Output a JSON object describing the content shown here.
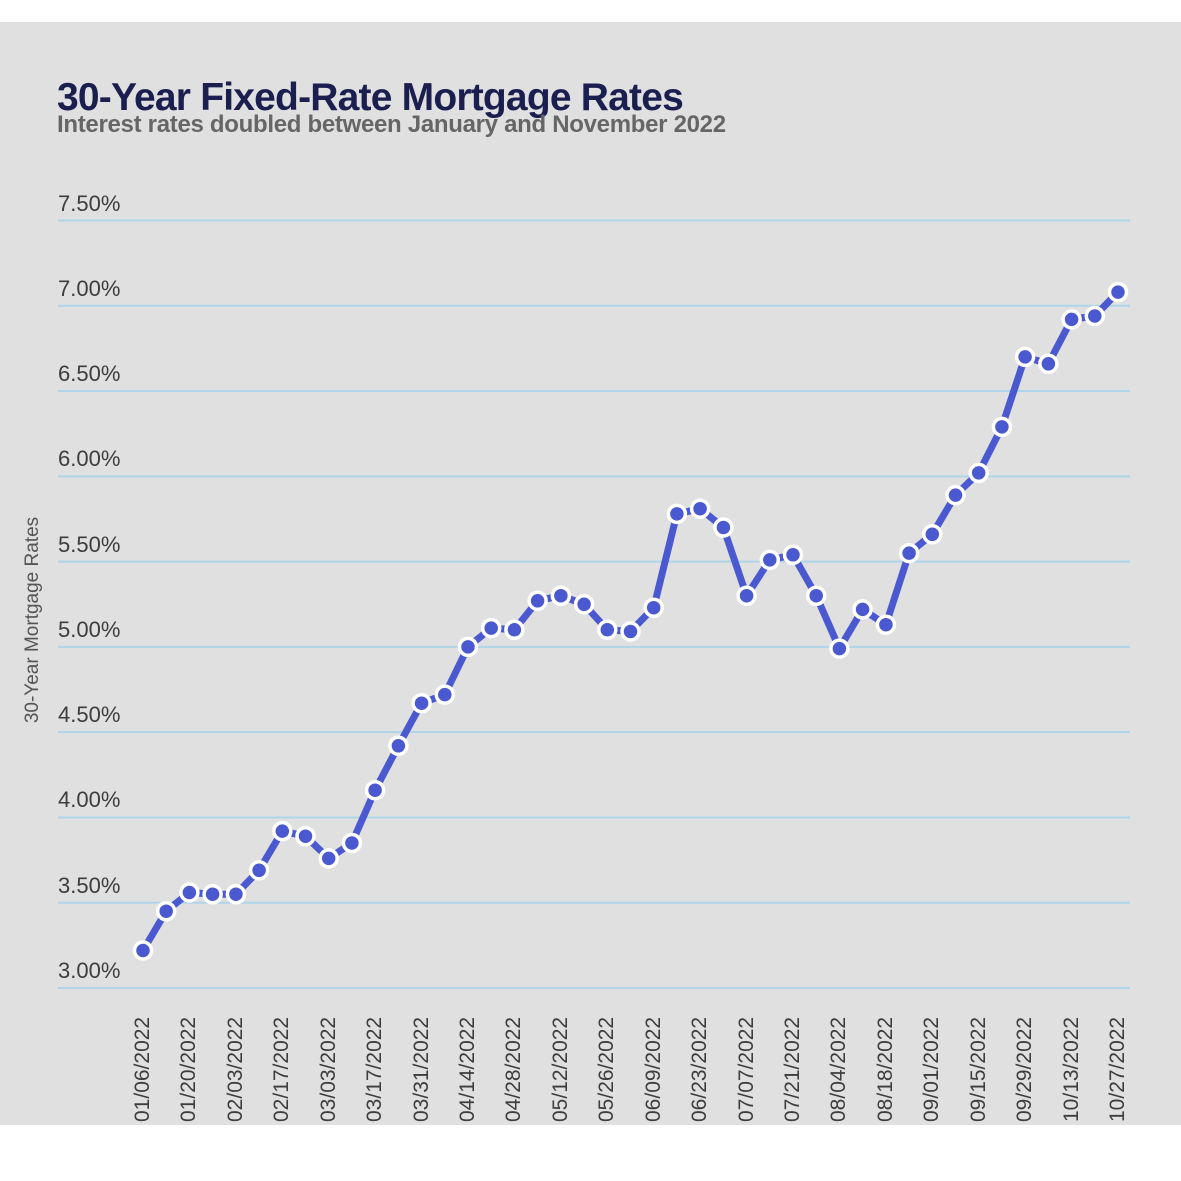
{
  "page": {
    "title": "30-Year Fixed-Rate Mortgage Rates",
    "subtitle": "Interest rates doubled between January and November 2022"
  },
  "colors": {
    "card_bg": "#e0e0e0",
    "page_bg": "#ffffff",
    "title": "#1a1f4f",
    "subtitle": "#666666",
    "gridline": "#aed6e8",
    "line": "#4b59d0",
    "marker_fill": "#4b59d0",
    "marker_ring": "#ffffff",
    "tick_text": "#3d3d3d",
    "axis_title_text": "#555555"
  },
  "chart_data": {
    "type": "line",
    "title": "30-Year Fixed-Rate Mortgage Rates",
    "subtitle": "Interest rates doubled between January and November 2022",
    "xlabel": "",
    "ylabel": "30-Year Mortgage Rates",
    "ylim": [
      3.0,
      7.5
    ],
    "grid": "horizontal",
    "legend": "none",
    "marker": "circle",
    "y_ticks": [
      {
        "value": 7.5,
        "label": "7.50%"
      },
      {
        "value": 7.0,
        "label": "7.00%"
      },
      {
        "value": 6.5,
        "label": "6.50%"
      },
      {
        "value": 6.0,
        "label": "6.00%"
      },
      {
        "value": 5.5,
        "label": "5.50%"
      },
      {
        "value": 5.0,
        "label": "5.00%"
      },
      {
        "value": 4.5,
        "label": "4.50%"
      },
      {
        "value": 4.0,
        "label": "4.00%"
      },
      {
        "value": 3.5,
        "label": "3.50%"
      },
      {
        "value": 3.0,
        "label": "3.00%"
      }
    ],
    "x_tick_every": 2,
    "x_tick_labels": [
      "01/06/2022",
      "01/20/2022",
      "02/03/2022",
      "02/17/2022",
      "03/03/2022",
      "03/17/2022",
      "03/31/2022",
      "04/14/2022",
      "04/28/2022",
      "05/12/2022",
      "05/26/2022",
      "06/09/2022",
      "06/23/2022",
      "07/07/2022",
      "07/21/2022",
      "08/04/2022",
      "08/18/2022",
      "09/01/2022",
      "09/15/2022",
      "09/29/2022",
      "10/13/2022",
      "10/27/2022"
    ],
    "x": [
      "01/06/2022",
      "01/13/2022",
      "01/20/2022",
      "01/27/2022",
      "02/03/2022",
      "02/10/2022",
      "02/17/2022",
      "02/24/2022",
      "03/03/2022",
      "03/10/2022",
      "03/17/2022",
      "03/24/2022",
      "03/31/2022",
      "04/07/2022",
      "04/14/2022",
      "04/21/2022",
      "04/28/2022",
      "05/05/2022",
      "05/12/2022",
      "05/19/2022",
      "05/26/2022",
      "06/02/2022",
      "06/09/2022",
      "06/16/2022",
      "06/23/2022",
      "06/30/2022",
      "07/07/2022",
      "07/14/2022",
      "07/21/2022",
      "07/28/2022",
      "08/04/2022",
      "08/11/2022",
      "08/18/2022",
      "08/25/2022",
      "09/01/2022",
      "09/08/2022",
      "09/15/2022",
      "09/22/2022",
      "09/29/2022",
      "10/06/2022",
      "10/13/2022",
      "10/20/2022",
      "10/27/2022"
    ],
    "series": [
      {
        "name": "30-Year Fixed-Rate Mortgage Rate",
        "values": [
          3.22,
          3.45,
          3.56,
          3.55,
          3.55,
          3.69,
          3.92,
          3.89,
          3.76,
          3.85,
          4.16,
          4.42,
          4.67,
          4.72,
          5.0,
          5.11,
          5.1,
          5.27,
          5.3,
          5.25,
          5.1,
          5.09,
          5.23,
          5.78,
          5.81,
          5.7,
          5.3,
          5.51,
          5.54,
          5.3,
          4.99,
          5.22,
          5.13,
          5.55,
          5.66,
          5.89,
          6.02,
          6.29,
          6.7,
          6.66,
          6.92,
          6.94,
          7.08
        ]
      }
    ]
  }
}
